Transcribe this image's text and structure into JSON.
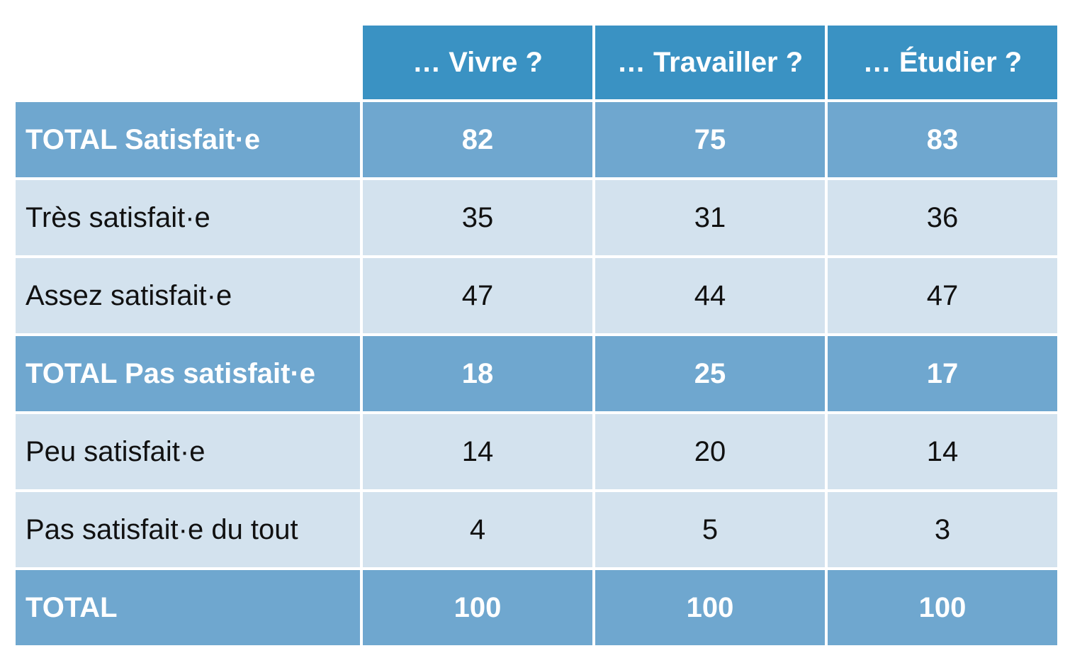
{
  "chart_data": {
    "type": "table",
    "columns": [
      "… Vivre ?",
      "… Travailler ?",
      "… Étudier ?"
    ],
    "rows": [
      {
        "label": "TOTAL Satisfait·e",
        "kind": "total",
        "values": [
          "82",
          "75",
          "83"
        ]
      },
      {
        "label": "Très satisfait·e",
        "kind": "sub",
        "values": [
          "35",
          "31",
          "36"
        ]
      },
      {
        "label": "Assez satisfait·e",
        "kind": "sub",
        "values": [
          "47",
          "44",
          "47"
        ]
      },
      {
        "label": "TOTAL Pas satisfait·e",
        "kind": "total",
        "values": [
          "18",
          "25",
          "17"
        ]
      },
      {
        "label": "Peu satisfait·e",
        "kind": "sub",
        "values": [
          "14",
          "20",
          "14"
        ]
      },
      {
        "label": "Pas satisfait·e du tout",
        "kind": "sub",
        "values": [
          "4",
          "5",
          "3"
        ]
      },
      {
        "label": "TOTAL",
        "kind": "total",
        "values": [
          "100",
          "100",
          "100"
        ]
      }
    ]
  },
  "colors": {
    "header": "#3a92c3",
    "total_row": "#6fa7cf",
    "sub_row": "#d3e2ee"
  }
}
